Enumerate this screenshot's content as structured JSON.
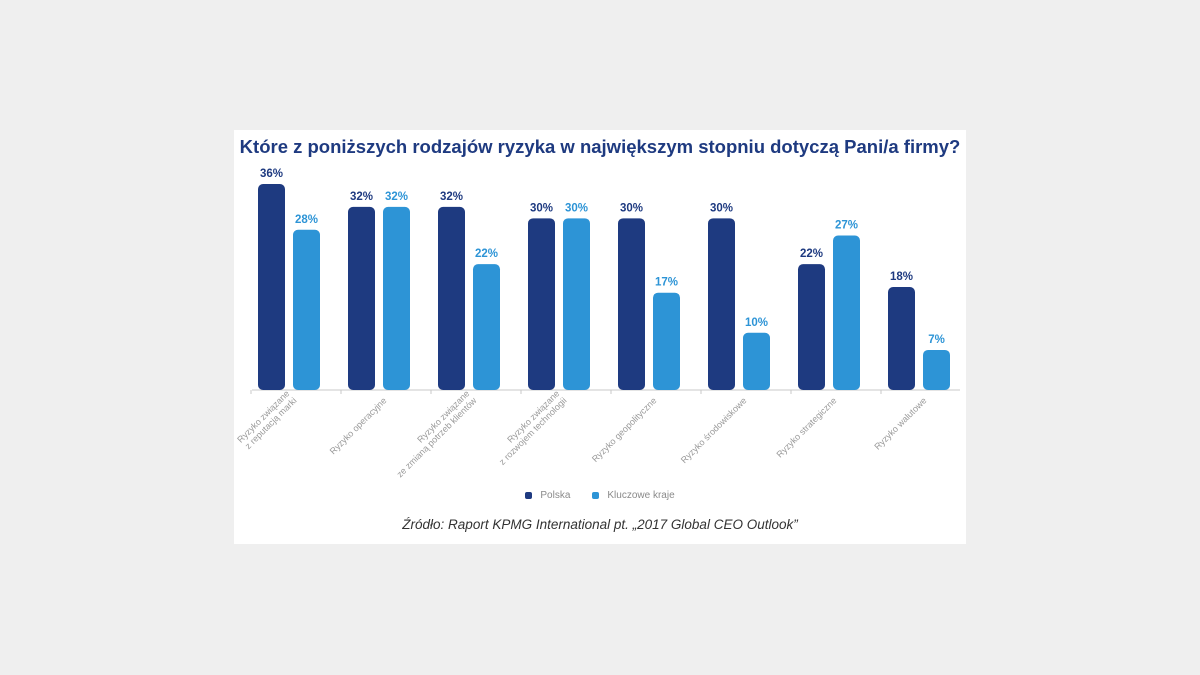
{
  "colors": {
    "polska": "#1e3a80",
    "kluczowe": "#2d94d6",
    "axis": "#c8c8c8",
    "tick_label": "#9a9a9a"
  },
  "legend": {
    "polska_label": "Polska",
    "kluczowe_label": "Kluczowe kraje"
  },
  "source": "Źródło: Raport KPMG International pt. „2017 Global CEO Outlook”",
  "chart_data": {
    "type": "bar",
    "title": "Które z poniższych rodzajów ryzyka w największym stopniu dotyczą Pani/a firmy?",
    "xlabel": "",
    "ylabel": "",
    "ylim": [
      0,
      36
    ],
    "grid": false,
    "legend_position": "bottom",
    "categories": [
      [
        "Ryzyko związane",
        "z reputacją marki"
      ],
      [
        "Ryzyko operacyjne"
      ],
      [
        "Ryzyko związane",
        "ze zmianą potrzeb klientów"
      ],
      [
        "Ryzyko związane",
        "z rozwojem technologii"
      ],
      [
        "Ryzyko geopolityczne"
      ],
      [
        "Ryzyko środowiskowe"
      ],
      [
        "Ryzyko strategiczne"
      ],
      [
        "Ryzyko walutowe"
      ]
    ],
    "series": [
      {
        "name": "Polska",
        "values": [
          36,
          32,
          32,
          30,
          30,
          30,
          22,
          18
        ],
        "labels": [
          "36%",
          "32%",
          "32%",
          "30%",
          "30%",
          "30%",
          "22%",
          "18%"
        ]
      },
      {
        "name": "Kluczowe kraje",
        "values": [
          28,
          32,
          22,
          30,
          17,
          10,
          27,
          7
        ],
        "labels": [
          "28%",
          "32%",
          "22%",
          "30%",
          "17%",
          "10%",
          "27%",
          "7%"
        ]
      }
    ]
  }
}
